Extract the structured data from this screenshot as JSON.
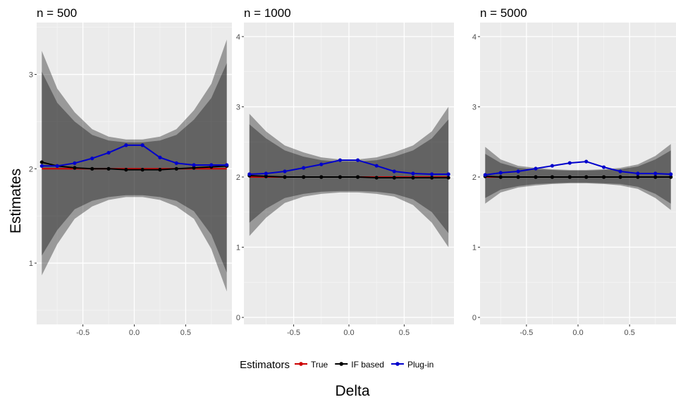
{
  "chart_data": {
    "type": "line",
    "xlabel": "Delta",
    "ylabel": "Estimates",
    "legend": {
      "title": "Estimators",
      "position": "bottom",
      "entries": [
        {
          "name": "True",
          "color": "#cc0000"
        },
        {
          "name": "IF based",
          "color": "#000000"
        },
        {
          "name": "Plug-in",
          "color": "#0000cc"
        }
      ]
    },
    "x_ticks": [
      -0.5,
      0.0,
      0.5
    ],
    "x_tick_labels": [
      "-0.5",
      "0.0",
      "0.5"
    ],
    "xlim": [
      -0.95,
      0.95
    ],
    "x": [
      -0.9,
      -0.75,
      -0.58,
      -0.41,
      -0.25,
      -0.08,
      0.08,
      0.25,
      0.41,
      0.58,
      0.75,
      0.9
    ],
    "panels": [
      {
        "title": "n = 500",
        "ylim": [
          0.35,
          3.55
        ],
        "y_ticks": [
          1,
          2,
          3
        ],
        "y_tick_labels": [
          "1",
          "2",
          "3"
        ],
        "series": [
          {
            "name": "True",
            "values": [
              2,
              2,
              2,
              2,
              2,
              2,
              2,
              2,
              2,
              2,
              2,
              2
            ]
          },
          {
            "name": "IF based",
            "values": [
              2.07,
              2.03,
              2.01,
              2.0,
              2.0,
              1.99,
              1.99,
              1.99,
              2.0,
              2.01,
              2.02,
              2.03
            ]
          },
          {
            "name": "Plug-in",
            "values": [
              2.03,
              2.03,
              2.06,
              2.11,
              2.17,
              2.25,
              2.25,
              2.12,
              2.06,
              2.04,
              2.04,
              2.04
            ]
          }
        ],
        "outer_band": {
          "lower": [
            0.87,
            1.2,
            1.47,
            1.6,
            1.67,
            1.7,
            1.7,
            1.67,
            1.6,
            1.47,
            1.15,
            0.7
          ],
          "upper": [
            3.25,
            2.85,
            2.6,
            2.42,
            2.34,
            2.31,
            2.31,
            2.34,
            2.42,
            2.62,
            2.9,
            3.37
          ]
        },
        "inner_band": {
          "lower": [
            1.08,
            1.35,
            1.57,
            1.66,
            1.7,
            1.72,
            1.72,
            1.7,
            1.66,
            1.55,
            1.3,
            0.9
          ],
          "upper": [
            3.03,
            2.7,
            2.5,
            2.36,
            2.3,
            2.28,
            2.28,
            2.3,
            2.36,
            2.52,
            2.75,
            3.12
          ]
        }
      },
      {
        "title": "n = 1000",
        "ylim": [
          -0.1,
          4.2
        ],
        "y_ticks": [
          0,
          1,
          2,
          3,
          4
        ],
        "y_tick_labels": [
          "0",
          "1",
          "2",
          "3",
          "4"
        ],
        "series": [
          {
            "name": "True",
            "values": [
              2,
              2,
              2,
              2,
              2,
              2,
              2,
              2,
              2,
              2,
              2,
              2
            ]
          },
          {
            "name": "IF based",
            "values": [
              2.02,
              2.01,
              2.0,
              2.0,
              2.0,
              2.0,
              2.0,
              1.99,
              1.99,
              1.99,
              1.99,
              1.99
            ]
          },
          {
            "name": "Plug-in",
            "values": [
              2.04,
              2.05,
              2.08,
              2.13,
              2.18,
              2.24,
              2.24,
              2.16,
              2.08,
              2.05,
              2.04,
              2.04
            ]
          }
        ],
        "outer_band": {
          "lower": [
            1.16,
            1.42,
            1.63,
            1.72,
            1.76,
            1.78,
            1.78,
            1.76,
            1.72,
            1.6,
            1.35,
            1.0
          ],
          "upper": [
            2.9,
            2.65,
            2.45,
            2.35,
            2.28,
            2.25,
            2.25,
            2.28,
            2.35,
            2.45,
            2.65,
            3.0
          ]
        },
        "inner_band": {
          "lower": [
            1.35,
            1.55,
            1.7,
            1.76,
            1.79,
            1.8,
            1.8,
            1.79,
            1.76,
            1.68,
            1.5,
            1.2
          ],
          "upper": [
            2.75,
            2.55,
            2.38,
            2.29,
            2.24,
            2.22,
            2.22,
            2.24,
            2.29,
            2.38,
            2.55,
            2.82
          ]
        }
      },
      {
        "title": "n = 5000",
        "ylim": [
          -0.1,
          4.2
        ],
        "y_ticks": [
          0,
          1,
          2,
          3,
          4
        ],
        "y_tick_labels": [
          "0",
          "1",
          "2",
          "3",
          "4"
        ],
        "series": [
          {
            "name": "True",
            "values": [
              2,
              2,
              2,
              2,
              2,
              2,
              2,
              2,
              2,
              2,
              2,
              2
            ]
          },
          {
            "name": "IF based",
            "values": [
              2.01,
              2.0,
              2.0,
              2.0,
              2.0,
              2.0,
              2.0,
              2.0,
              2.0,
              2.0,
              2.0,
              2.0
            ]
          },
          {
            "name": "Plug-in",
            "values": [
              2.03,
              2.06,
              2.08,
              2.12,
              2.16,
              2.2,
              2.22,
              2.14,
              2.08,
              2.05,
              2.05,
              2.04
            ]
          }
        ],
        "outer_band": {
          "lower": [
            1.62,
            1.78,
            1.85,
            1.88,
            1.9,
            1.91,
            1.91,
            1.9,
            1.88,
            1.83,
            1.7,
            1.53
          ],
          "upper": [
            2.43,
            2.25,
            2.16,
            2.13,
            2.11,
            2.1,
            2.1,
            2.11,
            2.13,
            2.18,
            2.3,
            2.47
          ]
        },
        "inner_band": {
          "lower": [
            1.7,
            1.82,
            1.87,
            1.9,
            1.91,
            1.92,
            1.92,
            1.91,
            1.9,
            1.86,
            1.76,
            1.62
          ],
          "upper": [
            2.33,
            2.2,
            2.13,
            2.11,
            2.1,
            2.09,
            2.09,
            2.1,
            2.11,
            2.15,
            2.25,
            2.38
          ]
        }
      }
    ]
  }
}
